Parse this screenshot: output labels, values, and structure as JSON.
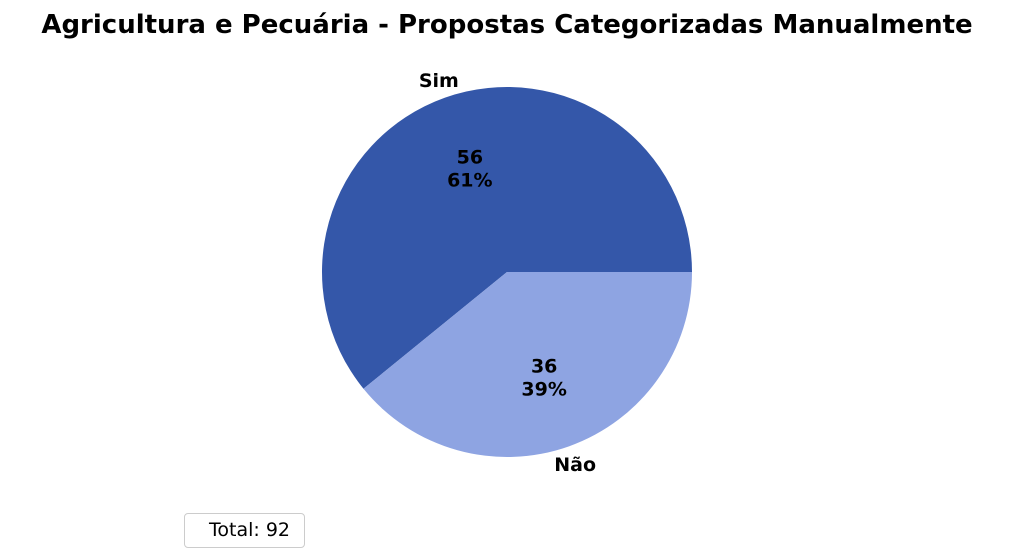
{
  "chart_data": {
    "type": "pie",
    "title": "Agricultura e Pecuária - Propostas Categorizadas Manualmente",
    "slices": [
      {
        "label": "Sim",
        "value": 56,
        "percent_label": "61%",
        "color": "#3457a9"
      },
      {
        "label": "Não",
        "value": 36,
        "percent_label": "39%",
        "color": "#8ea4e2"
      }
    ],
    "legend": {
      "text": "Total: 92",
      "placement": "bottom-left"
    }
  }
}
